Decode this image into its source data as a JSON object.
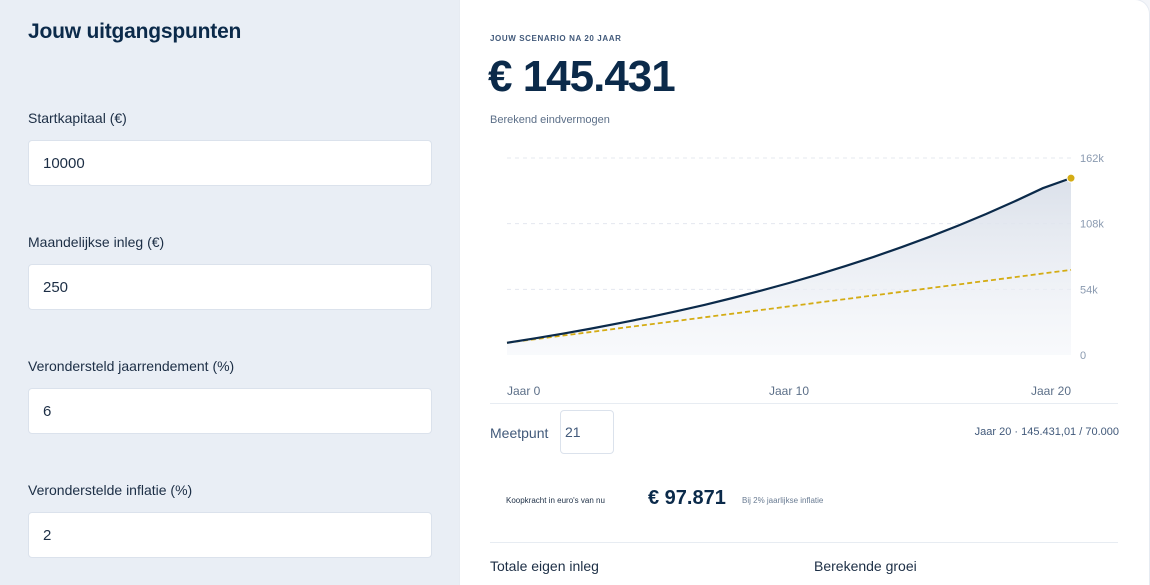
{
  "inputs": {
    "title": "Jouw uitgangspunten",
    "fields": [
      {
        "label": "Startkapitaal (€)",
        "value": "10000"
      },
      {
        "label": "Maandelijkse inleg (€)",
        "value": "250"
      },
      {
        "label": "Verondersteld jaarrendement (%)",
        "value": "6"
      },
      {
        "label": "Veronderstelde inflatie (%)",
        "value": "2"
      }
    ]
  },
  "result": {
    "eyebrow": "JOUW SCENARIO NA 20 JAAR",
    "value": "€ 145.431",
    "subtitle": "Berekend eindvermogen"
  },
  "measure": {
    "label": "Meetpunt",
    "value": "21",
    "readout": "Jaar 20 · 145.431,01 / 70.000"
  },
  "purchasing_power": {
    "label": "Koopkracht in euro's van nu",
    "value": "€ 97.871",
    "note": "Bij 2% jaarlijkse inflatie"
  },
  "summary": {
    "contributions_label": "Totale eigen inleg",
    "growth_label": "Berekende groei"
  },
  "colors": {
    "navy": "#0b2a4a",
    "gold": "#d4ac14",
    "muted": "#8a9ab0"
  },
  "chart_data": {
    "type": "line",
    "x": [
      0,
      1,
      2,
      3,
      4,
      5,
      6,
      7,
      8,
      9,
      10,
      11,
      12,
      13,
      14,
      15,
      16,
      17,
      18,
      19,
      20
    ],
    "x_tick_labels": [
      {
        "x": 0,
        "label": "Jaar 0"
      },
      {
        "x": 10,
        "label": "Jaar 10"
      },
      {
        "x": 20,
        "label": "Jaar 20"
      }
    ],
    "y_ticks": [
      {
        "value": 0,
        "label": "0"
      },
      {
        "value": 54000,
        "label": "54k"
      },
      {
        "value": 108000,
        "label": "108k"
      },
      {
        "value": 162000,
        "label": "162k"
      }
    ],
    "ylim": [
      0,
      162000
    ],
    "series": [
      {
        "values": [
          10000,
          13702,
          17633,
          21806,
          26237,
          30942,
          35937,
          41240,
          46871,
          52849,
          59196,
          65935,
          73090,
          80686,
          88751,
          97314,
          106405,
          116057,
          126305,
          137186,
          145431
        ],
        "color": "#0b2a4a",
        "style": "solid",
        "fill": true
      },
      {
        "values": [
          10000,
          13000,
          16000,
          19000,
          22000,
          25000,
          28000,
          31000,
          34000,
          37000,
          40000,
          43000,
          46000,
          49000,
          52000,
          55000,
          58000,
          61000,
          64000,
          67000,
          70000
        ],
        "color": "#d4ac14",
        "style": "dashed"
      }
    ],
    "end_marker": {
      "x": 20,
      "value": 145431
    },
    "grid": true
  }
}
